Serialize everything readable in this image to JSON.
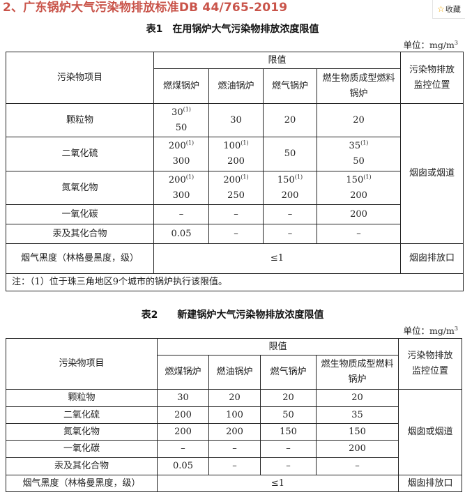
{
  "page_title": "2、广东锅炉大气污染物排放标准DB 44/765-2019",
  "favorite_button": {
    "icon": "star-icon",
    "label": "收藏"
  },
  "colors": {
    "title": "#c9544a",
    "star": "#f0a800"
  },
  "table1": {
    "caption": "表1　在用锅炉大气污染物排放浓度限值",
    "unit_label": "单位：mg/m",
    "unit_sup": "3",
    "headers": {
      "item": "污染物项目",
      "limit": "限值",
      "coal": "燃煤锅炉",
      "oil": "燃油锅炉",
      "gas": "燃气锅炉",
      "biomass": "燃生物质成型燃料锅炉",
      "location": "污染物排放监控位置"
    },
    "rows": [
      {
        "item": "颗粒物",
        "coal": "30",
        "coal_sup": "(1)",
        "coal2": "50",
        "oil": "30",
        "oil_sup": "",
        "oil2": "",
        "gas": "20",
        "gas_sup": "",
        "gas2": "",
        "biomass": "20",
        "biomass_sup": "",
        "biomass2": ""
      },
      {
        "item": "二氧化硫",
        "coal": "200",
        "coal_sup": "(1)",
        "coal2": "300",
        "oil": "100",
        "oil_sup": "(1)",
        "oil2": "200",
        "gas": "50",
        "gas_sup": "",
        "gas2": "",
        "biomass": "35",
        "biomass_sup": "(1)",
        "biomass2": "50"
      },
      {
        "item": "氮氧化物",
        "coal": "200",
        "coal_sup": "(1)",
        "coal2": "300",
        "oil": "200",
        "oil_sup": "(1)",
        "oil2": "250",
        "gas": "150",
        "gas_sup": "(1)",
        "gas2": "200",
        "biomass": "150",
        "biomass_sup": "(1)",
        "biomass2": "200"
      },
      {
        "item": "一氧化碳",
        "coal": "–",
        "oil": "–",
        "gas": "–",
        "biomass": "200"
      },
      {
        "item": "汞及其化合物",
        "coal": "0.05",
        "oil": "–",
        "gas": "–",
        "biomass": "–"
      }
    ],
    "location_main": "烟囱或烟道",
    "smoke": {
      "item": "烟气黑度（林格曼黑度，级）",
      "value": "≤1",
      "location": "烟囱排放口"
    },
    "note": "注：（1）位于珠三角地区9个城市的锅炉执行该限值。"
  },
  "table2": {
    "caption": "表2　　新建锅炉大气污染物排放浓度限值",
    "unit_label": "单位：mg/m",
    "unit_sup": "3",
    "headers": {
      "item": "污染物项目",
      "limit": "限值",
      "coal": "燃煤锅炉",
      "oil": "燃油锅炉",
      "gas": "燃气锅炉",
      "biomass": "燃生物质成型燃料锅炉",
      "location": "污染物排放监控位置"
    },
    "rows": [
      {
        "item": "颗粒物",
        "coal": "30",
        "oil": "20",
        "gas": "20",
        "biomass": "20"
      },
      {
        "item": "二氧化硫",
        "coal": "200",
        "oil": "100",
        "gas": "50",
        "biomass": "35"
      },
      {
        "item": "氮氧化物",
        "coal": "200",
        "oil": "200",
        "gas": "150",
        "biomass": "150"
      },
      {
        "item": "一氧化碳",
        "coal": "–",
        "oil": "–",
        "gas": "–",
        "biomass": "200"
      },
      {
        "item": "汞及其化合物",
        "coal": "0.05",
        "oil": "–",
        "gas": "–",
        "biomass": "–"
      }
    ],
    "location_main": "烟囱或烟道",
    "smoke": {
      "item": "烟气黑度（林格曼黑度，级）",
      "value": "≤1",
      "location": "烟囱排放口"
    }
  }
}
